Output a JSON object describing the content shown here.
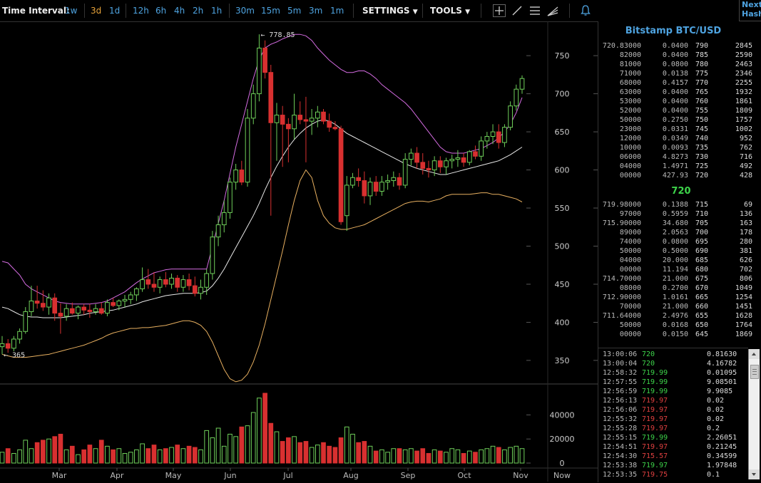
{
  "toolbar": {
    "time_interval_label": "Time Interval:",
    "intervals": [
      "1w",
      "3d",
      "1d",
      "12h",
      "6h",
      "4h",
      "2h",
      "1h",
      "30m",
      "15m",
      "5m",
      "3m",
      "1m"
    ],
    "active_interval": "3d",
    "settings_label": "SETTINGS",
    "tools_label": "TOOLS"
  },
  "corner_text": [
    "Next",
    "Hash"
  ],
  "market": {
    "title": "Bitstamp BTC/USD",
    "last_price": "720"
  },
  "orderbook": {
    "asks": [
      [
        "720.83000",
        "0.0400",
        "790",
        "2845"
      ],
      [
        "82000",
        "0.0400",
        "785",
        "2590"
      ],
      [
        "81000",
        "0.0800",
        "780",
        "2463"
      ],
      [
        "71000",
        "0.0138",
        "775",
        "2346"
      ],
      [
        "68000",
        "0.4157",
        "770",
        "2255"
      ],
      [
        "63000",
        "0.0400",
        "765",
        "1932"
      ],
      [
        "53000",
        "0.0400",
        "760",
        "1861"
      ],
      [
        "52000",
        "0.0400",
        "755",
        "1809"
      ],
      [
        "50000",
        "0.2750",
        "750",
        "1757"
      ],
      [
        "23000",
        "0.0331",
        "745",
        "1002"
      ],
      [
        "12000",
        "0.0349",
        "740",
        "952"
      ],
      [
        "10000",
        "0.0093",
        "735",
        "762"
      ],
      [
        "06000",
        "4.8273",
        "730",
        "716"
      ],
      [
        "04000",
        "1.4971",
        "725",
        "492"
      ],
      [
        "00000",
        "427.93",
        "720",
        "428"
      ]
    ],
    "bids": [
      [
        "719.98000",
        "0.1388",
        "715",
        "69"
      ],
      [
        "97000",
        "0.5959",
        "710",
        "136"
      ],
      [
        "715.90000",
        "34.680",
        "705",
        "163"
      ],
      [
        "89000",
        "2.0563",
        "700",
        "178"
      ],
      [
        "74000",
        "0.0800",
        "695",
        "280"
      ],
      [
        "50000",
        "0.5000",
        "690",
        "381"
      ],
      [
        "04000",
        "20.000",
        "685",
        "626"
      ],
      [
        "00000",
        "11.194",
        "680",
        "702"
      ],
      [
        "714.70000",
        "21.000",
        "675",
        "806"
      ],
      [
        "08000",
        "0.2700",
        "670",
        "1049"
      ],
      [
        "712.90000",
        "1.0161",
        "665",
        "1254"
      ],
      [
        "70000",
        "21.000",
        "660",
        "1451"
      ],
      [
        "711.64000",
        "2.4976",
        "655",
        "1628"
      ],
      [
        "50000",
        "0.0168",
        "650",
        "1764"
      ],
      [
        "00000",
        "0.0150",
        "645",
        "1869"
      ]
    ]
  },
  "trades": [
    {
      "time": "13:00:06",
      "price": "720",
      "amount": "0.81630",
      "dir": "up"
    },
    {
      "time": "13:00:04",
      "price": "720",
      "amount": "4.16782",
      "dir": "up"
    },
    {
      "time": "12:58:32",
      "price": "719.99",
      "amount": "0.01095",
      "dir": "up"
    },
    {
      "time": "12:57:55",
      "price": "719.99",
      "amount": "9.08501",
      "dir": "up"
    },
    {
      "time": "12:56:59",
      "price": "719.99",
      "amount": "9.9085",
      "dir": "up"
    },
    {
      "time": "12:56:13",
      "price": "719.97",
      "amount": "0.02",
      "dir": "down"
    },
    {
      "time": "12:56:06",
      "price": "719.97",
      "amount": "0.02",
      "dir": "down"
    },
    {
      "time": "12:55:32",
      "price": "719.97",
      "amount": "0.02",
      "dir": "down"
    },
    {
      "time": "12:55:28",
      "price": "719.97",
      "amount": "0.2",
      "dir": "down"
    },
    {
      "time": "12:55:15",
      "price": "719.99",
      "amount": "2.26051",
      "dir": "up"
    },
    {
      "time": "12:54:51",
      "price": "719.97",
      "amount": "0.21245",
      "dir": "down"
    },
    {
      "time": "12:54:30",
      "price": "715.57",
      "amount": "0.34599",
      "dir": "down"
    },
    {
      "time": "12:53:38",
      "price": "719.97",
      "amount": "1.97848",
      "dir": "up"
    },
    {
      "time": "12:53:35",
      "price": "719.75",
      "amount": "0.1",
      "dir": "down"
    }
  ],
  "chart_data": {
    "type": "candlestick",
    "y_ticks": [
      350,
      400,
      450,
      500,
      550,
      600,
      650,
      700,
      750
    ],
    "ylim": [
      320,
      795
    ],
    "volume_ticks": [
      0,
      20000,
      40000
    ],
    "volume_ylim": [
      0,
      58000
    ],
    "x_labels": [
      "Mar",
      "Apr",
      "May",
      "Jun",
      "Jul",
      "Aug",
      "Sep",
      "Oct",
      "Nov"
    ],
    "x_now_label": "Now",
    "annotations": {
      "high": "778.85",
      "low": "365"
    },
    "candles": [
      [
        368,
        382,
        358,
        372,
        9000
      ],
      [
        372,
        378,
        360,
        366,
        12000
      ],
      [
        366,
        382,
        362,
        378,
        8000
      ],
      [
        378,
        392,
        372,
        388,
        11000
      ],
      [
        388,
        420,
        385,
        414,
        19000
      ],
      [
        414,
        448,
        408,
        428,
        12000
      ],
      [
        428,
        448,
        418,
        425,
        17000
      ],
      [
        425,
        442,
        415,
        420,
        19000
      ],
      [
        420,
        438,
        410,
        432,
        20000
      ],
      [
        432,
        438,
        402,
        412,
        22000
      ],
      [
        412,
        425,
        385,
        408,
        24000
      ],
      [
        408,
        424,
        402,
        418,
        11000
      ],
      [
        418,
        426,
        410,
        412,
        14000
      ],
      [
        412,
        422,
        404,
        420,
        7000
      ],
      [
        420,
        424,
        410,
        416,
        11000
      ],
      [
        416,
        424,
        406,
        414,
        15000
      ],
      [
        414,
        424,
        410,
        418,
        12000
      ],
      [
        418,
        426,
        410,
        412,
        19000
      ],
      [
        412,
        430,
        408,
        426,
        14000
      ],
      [
        426,
        432,
        420,
        422,
        11000
      ],
      [
        422,
        430,
        416,
        428,
        12000
      ],
      [
        428,
        436,
        420,
        430,
        8000
      ],
      [
        430,
        440,
        424,
        436,
        9000
      ],
      [
        436,
        446,
        428,
        444,
        11000
      ],
      [
        444,
        472,
        440,
        456,
        16000
      ],
      [
        456,
        470,
        444,
        450,
        12000
      ],
      [
        450,
        466,
        440,
        446,
        15000
      ],
      [
        446,
        460,
        438,
        456,
        11000
      ],
      [
        456,
        466,
        446,
        450,
        12000
      ],
      [
        450,
        464,
        444,
        458,
        13000
      ],
      [
        458,
        462,
        440,
        446,
        15000
      ],
      [
        446,
        462,
        440,
        456,
        12000
      ],
      [
        456,
        464,
        442,
        448,
        14000
      ],
      [
        448,
        460,
        434,
        438,
        13000
      ],
      [
        438,
        456,
        430,
        446,
        11000
      ],
      [
        446,
        470,
        436,
        464,
        27000
      ],
      [
        464,
        520,
        456,
        512,
        21000
      ],
      [
        512,
        540,
        500,
        528,
        29000
      ],
      [
        528,
        560,
        518,
        544,
        14000
      ],
      [
        544,
        590,
        536,
        584,
        24000
      ],
      [
        584,
        608,
        574,
        600,
        22000
      ],
      [
        600,
        612,
        580,
        584,
        30000
      ],
      [
        584,
        680,
        578,
        668,
        31000
      ],
      [
        668,
        712,
        660,
        700,
        42000
      ],
      [
        700,
        778,
        690,
        760,
        54000
      ],
      [
        760,
        770,
        720,
        728,
        58000
      ],
      [
        728,
        738,
        540,
        662,
        33000
      ],
      [
        662,
        688,
        612,
        672,
        26000
      ],
      [
        672,
        684,
        604,
        660,
        18000
      ],
      [
        660,
        668,
        610,
        654,
        21000
      ],
      [
        654,
        700,
        640,
        672,
        22000
      ],
      [
        672,
        690,
        660,
        666,
        17000
      ],
      [
        666,
        696,
        610,
        664,
        18000
      ],
      [
        664,
        680,
        646,
        668,
        13000
      ],
      [
        668,
        684,
        656,
        676,
        15000
      ],
      [
        676,
        680,
        660,
        664,
        17000
      ],
      [
        664,
        674,
        650,
        656,
        14000
      ],
      [
        656,
        664,
        652,
        654,
        13000
      ],
      [
        654,
        658,
        528,
        532,
        21000
      ],
      [
        540,
        592,
        520,
        580,
        30000
      ],
      [
        580,
        596,
        576,
        590,
        24000
      ],
      [
        590,
        602,
        578,
        586,
        17000
      ],
      [
        586,
        598,
        556,
        566,
        18000
      ],
      [
        566,
        590,
        554,
        584,
        14000
      ],
      [
        584,
        592,
        566,
        572,
        10000
      ],
      [
        572,
        592,
        566,
        584,
        11000
      ],
      [
        584,
        594,
        574,
        586,
        9000
      ],
      [
        586,
        598,
        578,
        590,
        12000
      ],
      [
        590,
        596,
        574,
        580,
        12000
      ],
      [
        580,
        622,
        576,
        614,
        11000
      ],
      [
        614,
        628,
        606,
        622,
        12000
      ],
      [
        622,
        630,
        602,
        610,
        10000
      ],
      [
        610,
        622,
        594,
        602,
        12000
      ],
      [
        602,
        612,
        590,
        600,
        8000
      ],
      [
        600,
        618,
        592,
        612,
        11000
      ],
      [
        612,
        618,
        596,
        604,
        10000
      ],
      [
        604,
        616,
        594,
        612,
        9000
      ],
      [
        612,
        620,
        602,
        614,
        12000
      ],
      [
        614,
        626,
        604,
        616,
        11000
      ],
      [
        616,
        622,
        604,
        610,
        8000
      ],
      [
        610,
        626,
        606,
        624,
        10000
      ],
      [
        624,
        632,
        614,
        618,
        9000
      ],
      [
        618,
        644,
        612,
        638,
        11000
      ],
      [
        638,
        650,
        628,
        644,
        12000
      ],
      [
        644,
        660,
        634,
        650,
        14000
      ],
      [
        650,
        660,
        628,
        636,
        13000
      ],
      [
        636,
        660,
        630,
        656,
        11000
      ],
      [
        656,
        690,
        652,
        684,
        13000
      ],
      [
        684,
        712,
        678,
        706,
        14000
      ],
      [
        706,
        724,
        700,
        720,
        12000
      ]
    ],
    "bb_upper": [
      480,
      478,
      470,
      462,
      450,
      444,
      440,
      436,
      432,
      428,
      426,
      425,
      424,
      424,
      424,
      424,
      425,
      426,
      428,
      432,
      436,
      440,
      446,
      452,
      457,
      461,
      465,
      467,
      469,
      470,
      470,
      470,
      470,
      470,
      470,
      470,
      500,
      530,
      560,
      595,
      630,
      660,
      690,
      720,
      745,
      760,
      765,
      768,
      772,
      775,
      778,
      778,
      776,
      770,
      760,
      752,
      744,
      738,
      732,
      728,
      728,
      730,
      730,
      726,
      720,
      712,
      706,
      700,
      694,
      688,
      680,
      670,
      660,
      650,
      640,
      630,
      624,
      622,
      622,
      622,
      624,
      626,
      628,
      632,
      636,
      642,
      650,
      660,
      675,
      695
    ],
    "bb_mid": [
      420,
      418,
      414,
      410,
      408,
      407,
      407,
      406,
      406,
      406,
      406,
      407,
      408,
      409,
      410,
      412,
      413,
      414,
      415,
      416,
      418,
      420,
      422,
      424,
      427,
      429,
      431,
      433,
      435,
      436,
      437,
      438,
      438,
      438,
      439,
      441,
      448,
      458,
      470,
      484,
      498,
      512,
      526,
      540,
      556,
      574,
      590,
      605,
      618,
      630,
      640,
      648,
      655,
      660,
      664,
      666,
      664,
      660,
      654,
      648,
      644,
      640,
      636,
      632,
      628,
      624,
      620,
      616,
      612,
      608,
      605,
      602,
      600,
      598,
      596,
      594,
      594,
      596,
      598,
      600,
      602,
      604,
      606,
      608,
      610,
      612,
      616,
      620,
      625,
      630
    ],
    "bb_lower": [
      358,
      356,
      354,
      354,
      354,
      355,
      356,
      357,
      358,
      360,
      362,
      364,
      366,
      368,
      370,
      373,
      376,
      379,
      383,
      386,
      388,
      390,
      392,
      392,
      393,
      393,
      394,
      395,
      396,
      398,
      400,
      402,
      402,
      400,
      396,
      388,
      374,
      356,
      338,
      326,
      322,
      324,
      332,
      348,
      370,
      398,
      430,
      462,
      494,
      528,
      560,
      586,
      600,
      590,
      560,
      540,
      530,
      524,
      522,
      522,
      524,
      526,
      528,
      532,
      536,
      540,
      544,
      548,
      552,
      556,
      558,
      559,
      559,
      558,
      560,
      562,
      566,
      568,
      568,
      568,
      568,
      569,
      570,
      570,
      568,
      568,
      566,
      564,
      562,
      558
    ]
  }
}
